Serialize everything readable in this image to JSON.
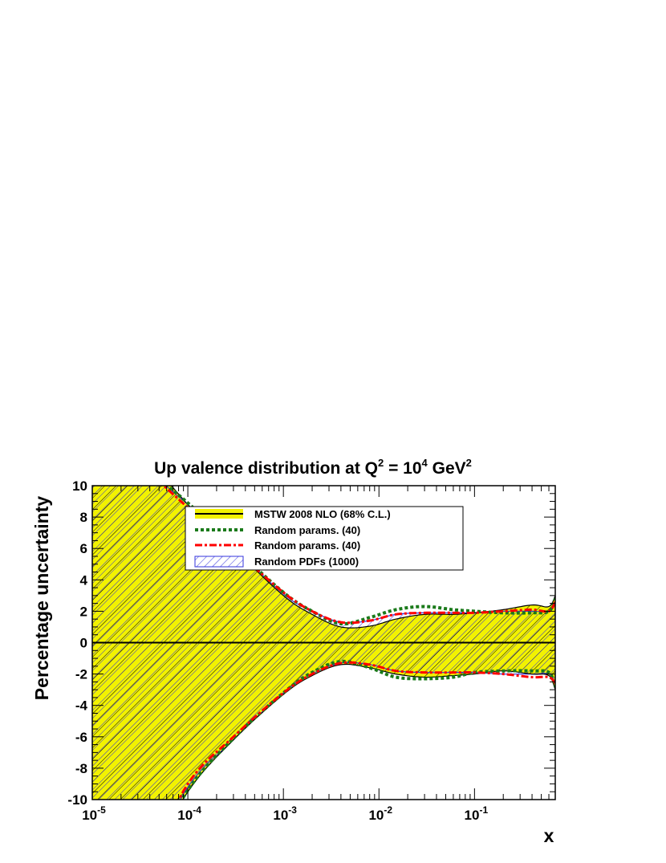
{
  "chart_data": {
    "type": "line",
    "title": {
      "main": "Up valence distribution at Q",
      "q_exp": "2",
      "mid": " = 10",
      "val_exp": "4",
      "unit": " GeV",
      "unit_exp": "2"
    },
    "xlabel": "x",
    "ylabel": "Percentage uncertainty",
    "x_scale": "log",
    "xlim": [
      1e-05,
      0.7
    ],
    "ylim": [
      -10,
      10
    ],
    "y_ticks": [
      "10",
      "8",
      "6",
      "4",
      "2",
      "0",
      "-2",
      "-4",
      "-6",
      "-8",
      "-10"
    ],
    "x_ticks": [
      {
        "base": "10",
        "exp": "-5",
        "value": 1e-05
      },
      {
        "base": "10",
        "exp": "-4",
        "value": 0.0001
      },
      {
        "base": "10",
        "exp": "-3",
        "value": 0.001
      },
      {
        "base": "10",
        "exp": "-2",
        "value": 0.01
      },
      {
        "base": "10",
        "exp": "-1",
        "value": 0.1
      }
    ],
    "legend": {
      "position": "top-center",
      "entries": [
        "MSTW 2008 NLO (68% C.L.)",
        "Random params. (40)",
        "Random params. (40)",
        "Random PDFs (1000)"
      ]
    },
    "colors": {
      "mstw_fill": "#f2f200",
      "mstw_line": "#000000",
      "random_params_green": "#1a7a1a",
      "random_params_red": "#ff0000",
      "random_pdfs": "#3333dd"
    },
    "series": [
      {
        "name": "MSTW 2008 NLO (68% C.L.)",
        "x": [
          1e-05,
          3e-05,
          0.0001,
          0.0003,
          0.001,
          0.002,
          0.004,
          0.008,
          0.015,
          0.03,
          0.06,
          0.1,
          0.2,
          0.4,
          0.6,
          0.7
        ],
        "upper": [
          15,
          12.5,
          8.8,
          6.0,
          3.0,
          1.8,
          1.0,
          1.05,
          1.5,
          1.8,
          1.8,
          1.9,
          2.1,
          2.4,
          2.3,
          3.0
        ],
        "lower": [
          -15,
          -15,
          -9.5,
          -6.2,
          -3.3,
          -2.1,
          -1.4,
          -1.6,
          -2.0,
          -2.2,
          -2.1,
          -2.0,
          -1.8,
          -2.0,
          -2.1,
          -3.0
        ]
      },
      {
        "name": "Random params. (40)",
        "x": [
          1e-05,
          3e-05,
          0.0001,
          0.0003,
          0.001,
          0.002,
          0.004,
          0.008,
          0.015,
          0.03,
          0.06,
          0.1,
          0.2,
          0.4,
          0.6,
          0.7
        ],
        "upper": [
          14,
          11.5,
          8.9,
          6.1,
          3.2,
          2.0,
          1.2,
          1.6,
          2.1,
          2.3,
          2.1,
          2.0,
          1.9,
          1.9,
          2.0,
          2.8
        ],
        "lower": [
          -15,
          -15,
          -9.4,
          -6.1,
          -3.2,
          -1.9,
          -1.2,
          -1.6,
          -2.2,
          -2.3,
          -2.2,
          -1.9,
          -1.8,
          -1.8,
          -1.9,
          -2.8
        ]
      },
      {
        "name": "Random params. (40)",
        "x": [
          1e-05,
          3e-05,
          0.0001,
          0.0003,
          0.001,
          0.002,
          0.004,
          0.008,
          0.015,
          0.03,
          0.06,
          0.1,
          0.2,
          0.4,
          0.6,
          0.7
        ],
        "upper": [
          14,
          11.5,
          8.6,
          6.0,
          3.2,
          2.0,
          1.3,
          1.4,
          1.8,
          1.9,
          1.9,
          1.9,
          2.0,
          2.1,
          2.0,
          2.6
        ],
        "lower": [
          -15,
          -15,
          -9.0,
          -6.0,
          -3.2,
          -2.0,
          -1.3,
          -1.4,
          -1.8,
          -1.9,
          -1.9,
          -1.9,
          -2.0,
          -2.2,
          -2.2,
          -2.6
        ]
      },
      {
        "name": "Random PDFs (1000)",
        "x": [
          1e-05,
          3e-05,
          0.0001,
          0.0003,
          0.001,
          0.002,
          0.004,
          0.008,
          0.015,
          0.03,
          0.06,
          0.1,
          0.2,
          0.4,
          0.6,
          0.7
        ],
        "upper": [
          14,
          11.5,
          8.8,
          6.1,
          3.1,
          2.0,
          1.3,
          1.4,
          1.8,
          1.9,
          1.9,
          1.9,
          2.0,
          2.0,
          2.0,
          2.6
        ],
        "lower": [
          -15,
          -15,
          -9.2,
          -6.2,
          -3.2,
          -2.0,
          -1.3,
          -1.4,
          -1.8,
          -1.9,
          -1.9,
          -1.9,
          -2.0,
          -2.0,
          -2.0,
          -2.6
        ]
      }
    ]
  }
}
